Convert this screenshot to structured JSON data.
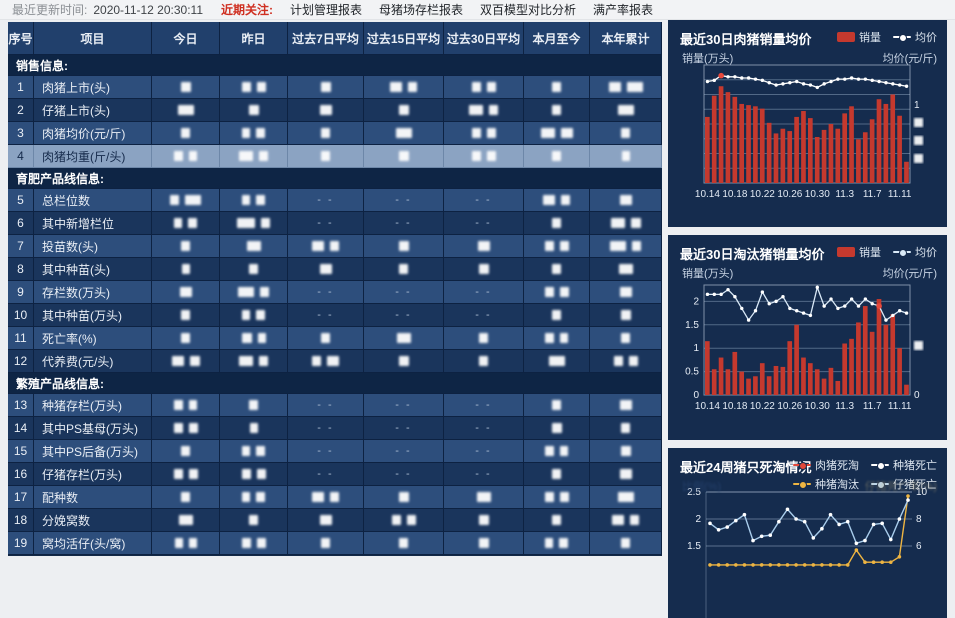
{
  "topbar": {
    "update_label": "最近更新时间:",
    "update_time": "2020-11-12 20:30:11",
    "focus_label": "近期关注:",
    "links": [
      "计划管理报表",
      "母猪场存栏报表",
      "双百模型对比分析",
      "满产率报表"
    ]
  },
  "table": {
    "columns": [
      "序号",
      "项目",
      "今日",
      "昨日",
      "过去7日平均",
      "过去15日平均",
      "过去30日平均",
      "本月至今",
      "本年累计"
    ],
    "redaction_note": "all numeric cell values are blurred out in the source screenshot",
    "sections": [
      {
        "title": "销售信息:",
        "rows": [
          {
            "no": "1",
            "label": "肉猪上市(头)",
            "selected": false,
            "cells": [
              "b10",
              "b9 b9",
              "b10",
              "b12 b9",
              "b9 b9",
              "b9",
              "b12 b16"
            ]
          },
          {
            "no": "2",
            "label": "仔猪上市(头)",
            "selected": false,
            "cells": [
              "b16",
              "b10",
              "b12",
              "b10",
              "b14 b9",
              "b9",
              "b16"
            ]
          },
          {
            "no": "3",
            "label": "肉猪均价(元/斤)",
            "selected": false,
            "cells": [
              "b9",
              "b8 b9",
              "b9",
              "b16",
              "b9 b9",
              "b14 b12",
              "b9"
            ]
          },
          {
            "no": "4",
            "label": "肉猪均重(斤/头)",
            "selected": true,
            "cells": [
              "b9 b8",
              "b14 b9",
              "b9",
              "b10",
              "b9 b9",
              "b9",
              "b8"
            ]
          }
        ]
      },
      {
        "title": "育肥产品线信息:",
        "rows": [
          {
            "no": "5",
            "label": "总栏位数",
            "selected": false,
            "cells": [
              "b9 b16",
              "b8 b9",
              "--",
              "--",
              "--",
              "b12 b9",
              "b12"
            ]
          },
          {
            "no": "6",
            "label": "其中新增栏位",
            "selected": false,
            "cells": [
              "b8 b9",
              "b18 b9",
              "--",
              "--",
              "--",
              "b9",
              "b14 b10"
            ]
          },
          {
            "no": "7",
            "label": "投苗数(头)",
            "selected": false,
            "cells": [
              "b9",
              "b14",
              "b12 b9",
              "b10",
              "b12",
              "b9 b9",
              "b16 b9"
            ]
          },
          {
            "no": "8",
            "label": "其中种苗(头)",
            "selected": false,
            "cells": [
              "b8",
              "b9",
              "b12",
              "b9",
              "b10",
              "b9",
              "b14"
            ]
          },
          {
            "no": "9",
            "label": "存栏数(万头)",
            "selected": false,
            "cells": [
              "b12",
              "b16 b9",
              "--",
              "--",
              "--",
              "b9 b9",
              "b12"
            ]
          },
          {
            "no": "10",
            "label": "其中种苗(万头)",
            "selected": false,
            "cells": [
              "b9",
              "b8 b9",
              "--",
              "--",
              "--",
              "b9",
              "b10"
            ]
          },
          {
            "no": "11",
            "label": "死亡率(%)",
            "selected": false,
            "cells": [
              "b9",
              "b10 b8",
              "b9",
              "b14",
              "b9",
              "b9 b8",
              "b9"
            ]
          },
          {
            "no": "12",
            "label": "代养费(元/头)",
            "selected": false,
            "cells": [
              "b12 b10",
              "b14 b9",
              "b9 b12",
              "b10",
              "b9",
              "b16",
              "b9 b9"
            ]
          }
        ]
      },
      {
        "title": "繁殖产品线信息:",
        "rows": [
          {
            "no": "13",
            "label": "种猪存栏(万头)",
            "selected": false,
            "cells": [
              "b9 b8",
              "b9",
              "--",
              "--",
              "--",
              "b9",
              "b12"
            ]
          },
          {
            "no": "14",
            "label": "其中PS基母(万头)",
            "selected": false,
            "cells": [
              "b9 b9",
              "b8",
              "--",
              "--",
              "--",
              "b10",
              "b9"
            ]
          },
          {
            "no": "15",
            "label": "其中PS后备(万头)",
            "selected": false,
            "cells": [
              "b9",
              "b8 b9",
              "--",
              "--",
              "--",
              "b9 b8",
              "b10"
            ]
          },
          {
            "no": "16",
            "label": "仔猪存栏(万头)",
            "selected": false,
            "cells": [
              "b9 b9",
              "b9 b9",
              "--",
              "--",
              "--",
              "b9",
              "b12"
            ]
          },
          {
            "no": "17",
            "label": "配种数",
            "selected": false,
            "cells": [
              "b9",
              "b8 b9",
              "b12 b9",
              "b10",
              "b14",
              "b9 b9",
              "b16"
            ]
          },
          {
            "no": "18",
            "label": "分娩窝数",
            "selected": false,
            "cells": [
              "b14",
              "b9",
              "b12",
              "b9 b9",
              "b10",
              "b9",
              "b12 b9"
            ]
          },
          {
            "no": "19",
            "label": "窝均活仔(头/窝)",
            "selected": false,
            "cells": [
              "b8 b8",
              "b9 b9",
              "b9",
              "b9",
              "b10",
              "b8 b9",
              "b9"
            ]
          }
        ]
      }
    ]
  },
  "chart_data": [
    {
      "type": "bar",
      "title": "最近30日肉猪销量均价",
      "legend": [
        {
          "label": "销量",
          "type": "bar",
          "color": "#c5392e"
        },
        {
          "label": "均价",
          "type": "line",
          "color": "#ffffff"
        }
      ],
      "ylabel_left": "销量(万头)",
      "ylabel_right": "均价(元/斤)",
      "x_tick_labels": [
        "10.14",
        "10.18",
        "10.22",
        "10.26",
        "10.30",
        "11.3",
        "11.7",
        "11.11"
      ],
      "n_points": 30,
      "axis_values_redacted": true,
      "right_axis_ticks": [
        "1",
        "▮",
        "▮",
        "▮"
      ],
      "series": [
        {
          "name": "销量",
          "type": "bar",
          "units": "pct_of_plot_height (axis redacted)",
          "values": [
            56,
            74,
            82,
            77,
            73,
            67,
            66,
            65,
            63,
            51,
            42,
            46,
            44,
            56,
            61,
            55,
            39,
            45,
            50,
            46,
            59,
            65,
            37,
            43,
            54,
            71,
            67,
            75,
            57,
            18
          ]
        },
        {
          "name": "均价",
          "type": "line",
          "units": "pct_of_plot_height (axis redacted)",
          "highlight_index": 2,
          "values": [
            86,
            87,
            91,
            90,
            90,
            89,
            89,
            88,
            87,
            85,
            83,
            84,
            85,
            86,
            84,
            83,
            81,
            84,
            86,
            88,
            88,
            89,
            88,
            88,
            87,
            86,
            85,
            84,
            83,
            82
          ]
        }
      ]
    },
    {
      "type": "bar",
      "title": "最近30日淘汰猪销量均价",
      "legend": [
        {
          "label": "销量",
          "type": "bar",
          "color": "#c5392e"
        },
        {
          "label": "均价",
          "type": "line",
          "color": "#d9e9f7"
        }
      ],
      "ylabel_left": "销量(万头)",
      "ylabel_right": "均价(元/斤)",
      "x_tick_labels": [
        "10.14",
        "10.18",
        "10.22",
        "10.26",
        "10.30",
        "11.3",
        "11.7",
        "11.11"
      ],
      "n_points": 30,
      "ylim_left": [
        0,
        2.35
      ],
      "left_axis_ticks": [
        "2",
        "1.5",
        "1",
        "0.5",
        "0"
      ],
      "right_axis_ticks": [
        "▮",
        "0"
      ],
      "series": [
        {
          "name": "销量",
          "type": "bar",
          "units": "万头",
          "values": [
            1.15,
            0.55,
            0.8,
            0.55,
            0.92,
            0.5,
            0.35,
            0.4,
            0.68,
            0.4,
            0.62,
            0.6,
            1.15,
            1.5,
            0.8,
            0.68,
            0.55,
            0.35,
            0.58,
            0.3,
            1.1,
            1.2,
            1.55,
            1.9,
            1.35,
            2.05,
            1.5,
            1.72,
            1.0,
            0.22
          ]
        },
        {
          "name": "均价",
          "type": "line",
          "units": "left-axis equivalent (right axis redacted)",
          "highlight_index": 25,
          "values": [
            2.15,
            2.15,
            2.15,
            2.25,
            2.1,
            1.85,
            1.6,
            1.8,
            2.2,
            1.95,
            2.0,
            2.1,
            1.85,
            1.8,
            1.75,
            1.7,
            2.3,
            1.9,
            2.05,
            1.85,
            1.9,
            2.05,
            1.9,
            2.05,
            1.95,
            1.9,
            1.6,
            1.7,
            1.8,
            1.75
          ]
        }
      ]
    },
    {
      "type": "line",
      "title": "最近24周猪只死淘情况",
      "legend": [
        {
          "label": "肉猪死淘",
          "type": "line",
          "color": "#e2483a"
        },
        {
          "label": "种猪死亡",
          "type": "line",
          "color": "#ffffff"
        },
        {
          "label": "种猪淘汰",
          "type": "line",
          "color": "#eeb542"
        },
        {
          "label": "仔猪死亡",
          "type": "line",
          "color": "#bdd9f2"
        }
      ],
      "ylabel_left": "比例(%)",
      "ylabel_right": "仔猪死亡率(%)",
      "left_axis_ticks": [
        "2.5",
        "2",
        "1.5"
      ],
      "right_axis_ticks": [
        "10",
        "8",
        "6"
      ],
      "n_points": 24,
      "clipped_at_bottom": true,
      "series": [
        {
          "name": "仔猪死亡",
          "axis": "left",
          "color": "#a9cdec",
          "values": [
            1.92,
            1.8,
            1.85,
            1.97,
            2.08,
            1.6,
            1.68,
            1.7,
            1.95,
            2.18,
            2.0,
            1.95,
            1.65,
            1.82,
            2.08,
            1.9,
            1.95,
            1.55,
            1.6,
            1.9,
            1.92,
            1.62,
            2.0,
            2.35
          ]
        },
        {
          "name": "种猪淘汰",
          "axis": "right",
          "color": "#eeb542",
          "values": [
            4.6,
            4.6,
            4.6,
            4.6,
            4.6,
            4.6,
            4.6,
            4.6,
            4.6,
            4.6,
            4.6,
            4.6,
            4.6,
            4.6,
            4.6,
            4.6,
            4.6,
            5.7,
            4.8,
            4.8,
            4.8,
            4.8,
            5.2,
            9.7
          ]
        }
      ]
    }
  ]
}
